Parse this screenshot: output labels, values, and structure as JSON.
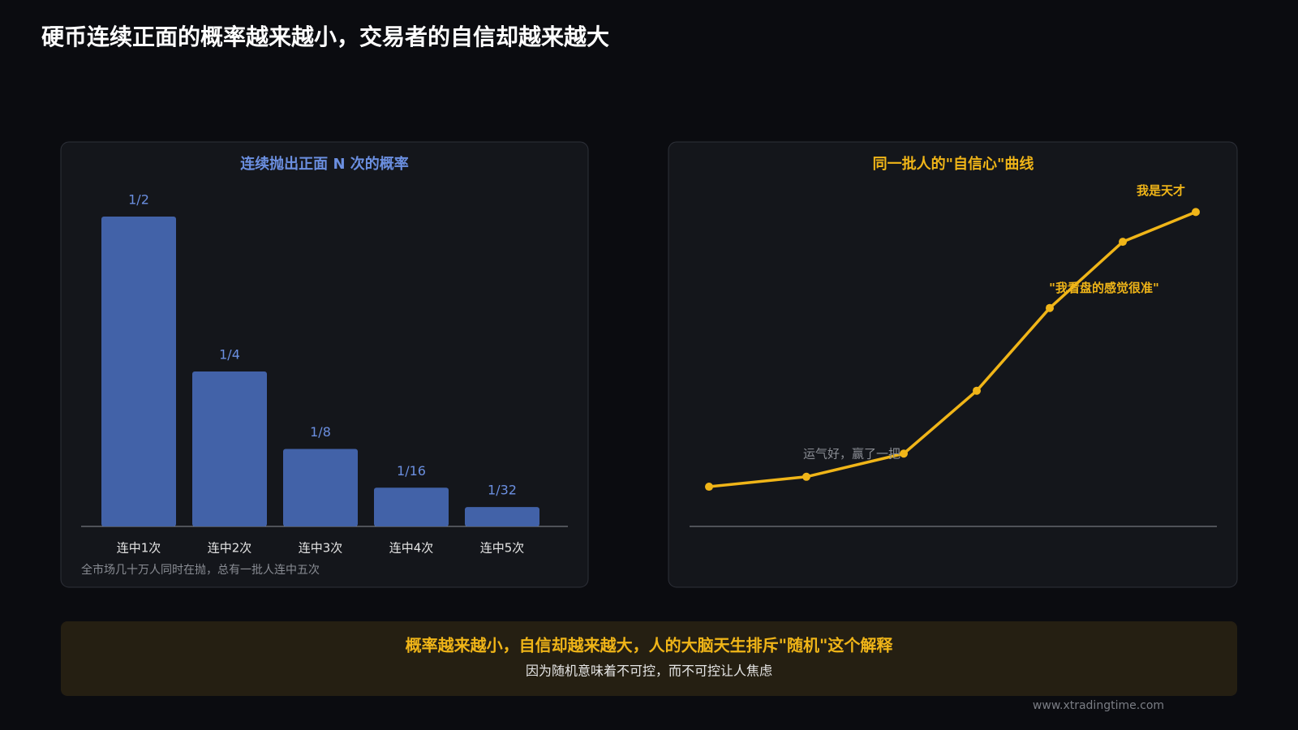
{
  "title": "硬币连续正面的概率越来越小，交易者的自信却越来越大",
  "chart_data": [
    {
      "type": "bar",
      "title": "连续抛出正面 N 次的概率",
      "categories": [
        "连中1次",
        "连中2次",
        "连中3次",
        "连中4次",
        "连中5次"
      ],
      "values": [
        0.5,
        0.25,
        0.125,
        0.0625,
        0.03125
      ],
      "value_labels": [
        "1/2",
        "1/4",
        "1/8",
        "1/16",
        "1/32"
      ],
      "color": "#4262a8",
      "ylim": [
        0,
        0.5
      ],
      "note": "全市场几十万人同时在抛，总有一批人连中五次"
    },
    {
      "type": "line",
      "title": "同一批人的\"自信心\"曲线",
      "x": [
        0,
        4,
        8,
        11,
        14,
        17,
        20
      ],
      "xlim": [
        0,
        20
      ],
      "values": [
        12,
        15,
        22,
        41,
        66,
        86,
        95
      ],
      "ylim": [
        0,
        100
      ],
      "color": "#f0b518",
      "annotations": [
        null,
        null,
        "运气好，赢了一把",
        null,
        "\"我看盘的感觉很准\"",
        null,
        "我是天才"
      ]
    }
  ],
  "callout": {
    "heading": "概率越来越小，自信却越来越大，人的大脑天生排斥\"随机\"这个解释",
    "text": "因为随机意味着不可控，而不可控让人焦虑"
  },
  "footer": "www.xtradingtime.com"
}
